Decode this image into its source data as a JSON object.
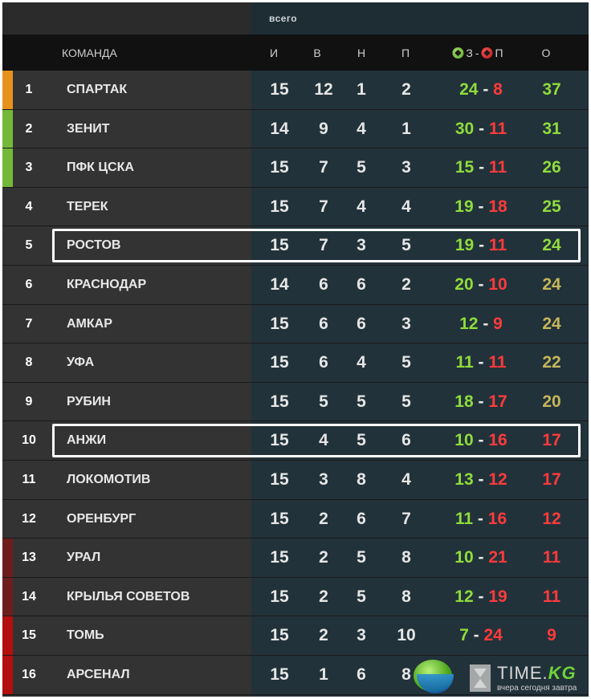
{
  "header": {
    "group_label": "всего",
    "columns": {
      "team": "КОМАНДА",
      "played": "И",
      "won": "В",
      "drawn": "Н",
      "lost": "П",
      "goals_for": "З",
      "goals_sep": "-",
      "goals_against": "П",
      "points": "О"
    }
  },
  "colors": {
    "champions_league": "#e8921e",
    "cl_qualification": "#74b83a",
    "relegation_playoff": "#6e1d1d",
    "relegation": "#b30f0f",
    "points_top": "#8fdc3c",
    "points_mid": "#c6b65a",
    "points_bottom": "#ff3b3b"
  },
  "rows": [
    {
      "pos": "1",
      "team": "СПАРТАК",
      "played": "15",
      "won": "12",
      "drawn": "1",
      "lost": "2",
      "gf": "24",
      "ga": "8",
      "pts": "37",
      "zone": "champions_league",
      "pts_color": "points_top"
    },
    {
      "pos": "2",
      "team": "ЗЕНИТ",
      "played": "14",
      "won": "9",
      "drawn": "4",
      "lost": "1",
      "gf": "30",
      "ga": "11",
      "pts": "31",
      "zone": "cl_qualification",
      "pts_color": "points_top"
    },
    {
      "pos": "3",
      "team": "ПФК ЦСКА",
      "played": "15",
      "won": "7",
      "drawn": "5",
      "lost": "3",
      "gf": "15",
      "ga": "11",
      "pts": "26",
      "zone": "cl_qualification",
      "pts_color": "points_top"
    },
    {
      "pos": "4",
      "team": "ТЕРЕК",
      "played": "15",
      "won": "7",
      "drawn": "4",
      "lost": "4",
      "gf": "19",
      "ga": "18",
      "pts": "25",
      "zone": "none",
      "pts_color": "points_top"
    },
    {
      "pos": "5",
      "team": "РОСТОВ",
      "played": "15",
      "won": "7",
      "drawn": "3",
      "lost": "5",
      "gf": "19",
      "ga": "11",
      "pts": "24",
      "zone": "none",
      "pts_color": "points_top",
      "highlighted": true
    },
    {
      "pos": "6",
      "team": "КРАСНОДАР",
      "played": "14",
      "won": "6",
      "drawn": "6",
      "lost": "2",
      "gf": "20",
      "ga": "10",
      "pts": "24",
      "zone": "none",
      "pts_color": "points_mid"
    },
    {
      "pos": "7",
      "team": "АМКАР",
      "played": "15",
      "won": "6",
      "drawn": "6",
      "lost": "3",
      "gf": "12",
      "ga": "9",
      "pts": "24",
      "zone": "none",
      "pts_color": "points_mid"
    },
    {
      "pos": "8",
      "team": "УФА",
      "played": "15",
      "won": "6",
      "drawn": "4",
      "lost": "5",
      "gf": "11",
      "ga": "11",
      "pts": "22",
      "zone": "none",
      "pts_color": "points_mid"
    },
    {
      "pos": "9",
      "team": "РУБИН",
      "played": "15",
      "won": "5",
      "drawn": "5",
      "lost": "5",
      "gf": "18",
      "ga": "17",
      "pts": "20",
      "zone": "none",
      "pts_color": "points_mid"
    },
    {
      "pos": "10",
      "team": "АНЖИ",
      "played": "15",
      "won": "4",
      "drawn": "5",
      "lost": "6",
      "gf": "10",
      "ga": "16",
      "pts": "17",
      "zone": "none",
      "pts_color": "points_bottom",
      "highlighted": true
    },
    {
      "pos": "11",
      "team": "ЛОКОМОТИВ",
      "played": "15",
      "won": "3",
      "drawn": "8",
      "lost": "4",
      "gf": "13",
      "ga": "12",
      "pts": "17",
      "zone": "none",
      "pts_color": "points_bottom"
    },
    {
      "pos": "12",
      "team": "ОРЕНБУРГ",
      "played": "15",
      "won": "2",
      "drawn": "6",
      "lost": "7",
      "gf": "11",
      "ga": "16",
      "pts": "12",
      "zone": "none",
      "pts_color": "points_bottom"
    },
    {
      "pos": "13",
      "team": "УРАЛ",
      "played": "15",
      "won": "2",
      "drawn": "5",
      "lost": "8",
      "gf": "10",
      "ga": "21",
      "pts": "11",
      "zone": "relegation_playoff",
      "pts_color": "points_bottom"
    },
    {
      "pos": "14",
      "team": "КРЫЛЬЯ СОВЕТОВ",
      "played": "15",
      "won": "2",
      "drawn": "5",
      "lost": "8",
      "gf": "12",
      "ga": "19",
      "pts": "11",
      "zone": "relegation_playoff",
      "pts_color": "points_bottom"
    },
    {
      "pos": "15",
      "team": "ТОМЬ",
      "played": "15",
      "won": "2",
      "drawn": "3",
      "lost": "10",
      "gf": "7",
      "ga": "24",
      "pts": "9",
      "zone": "relegation",
      "pts_color": "points_bottom"
    },
    {
      "pos": "16",
      "team": "АРСЕНАЛ",
      "played": "15",
      "won": "1",
      "drawn": "6",
      "lost": "8",
      "gf": "",
      "ga": "",
      "pts": "",
      "zone": "relegation",
      "pts_color": "points_bottom"
    }
  ],
  "watermark": {
    "brand": "TIME.",
    "brand_suffix": "KG",
    "tagline": "вчера сегодня завтра"
  }
}
